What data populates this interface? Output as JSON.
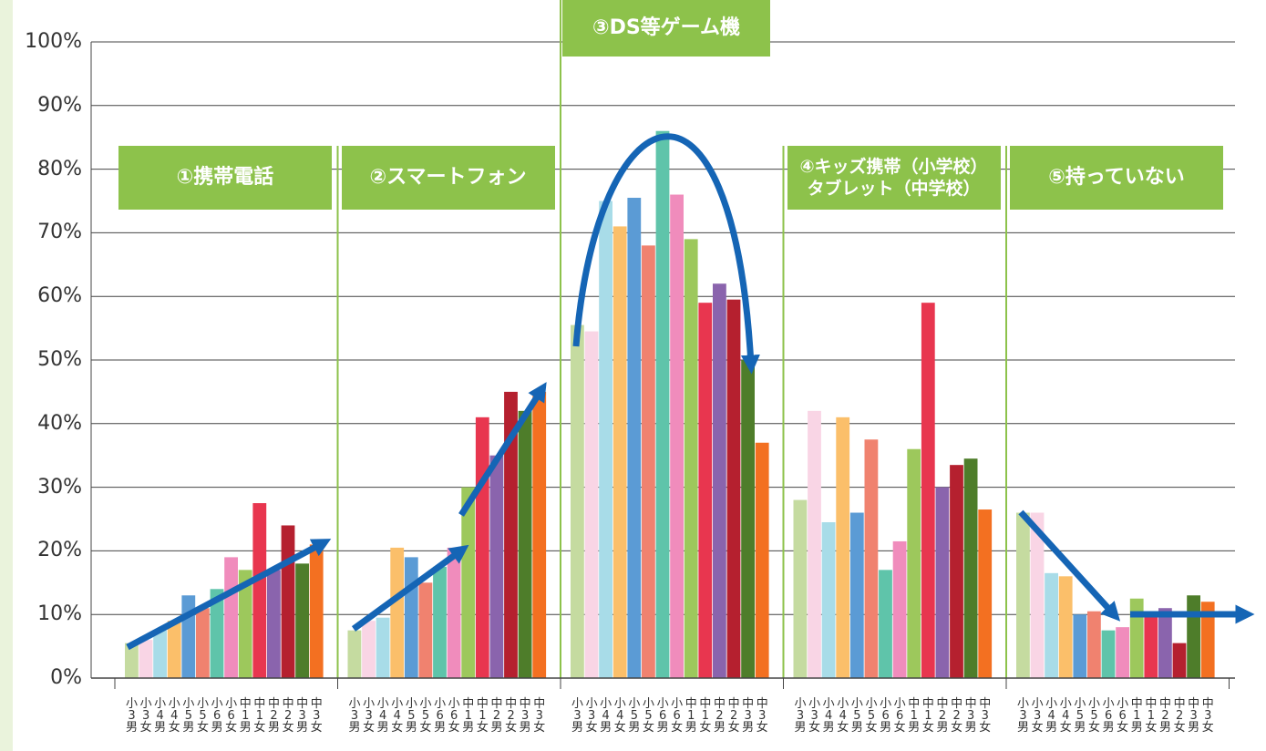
{
  "chart_data": {
    "type": "bar",
    "categories": [
      "①携帯電話",
      "②スマートフォン",
      "③DS等ゲーム機",
      "④キッズ携帯（小学校）\nタブレット（中学校）",
      "⑤持っていない"
    ],
    "series": [
      {
        "name": "小3男",
        "color": "#c5dba0",
        "values": [
          5.5,
          7.5,
          55.5,
          28,
          26
        ]
      },
      {
        "name": "小3女",
        "color": "#f9d5e5",
        "values": [
          6,
          9,
          54.5,
          42,
          26
        ]
      },
      {
        "name": "小4男",
        "color": "#a8dce8",
        "values": [
          7.5,
          9.5,
          75,
          24.5,
          16.5
        ]
      },
      {
        "name": "小4女",
        "color": "#fbbf6a",
        "values": [
          9,
          20.5,
          71,
          41,
          16
        ]
      },
      {
        "name": "小5男",
        "color": "#5b9bd5",
        "values": [
          13,
          19,
          75.5,
          26,
          10
        ]
      },
      {
        "name": "小5女",
        "color": "#f0826f",
        "values": [
          11,
          15,
          68,
          37.5,
          10.5
        ]
      },
      {
        "name": "小6男",
        "color": "#5fc4aa",
        "values": [
          14,
          17.5,
          86,
          17,
          7.5
        ]
      },
      {
        "name": "小6女",
        "color": "#f08cbc",
        "values": [
          19,
          20.5,
          76,
          21.5,
          8
        ]
      },
      {
        "name": "中1男",
        "color": "#9dc85c",
        "values": [
          17,
          30,
          69,
          36,
          12.5
        ]
      },
      {
        "name": "中1女",
        "color": "#e8364f",
        "values": [
          27.5,
          41,
          59,
          59,
          10
        ]
      },
      {
        "name": "中2男",
        "color": "#8a64ad",
        "values": [
          17,
          35,
          62,
          30,
          11
        ]
      },
      {
        "name": "中2女",
        "color": "#b5202f",
        "values": [
          24,
          45,
          59.5,
          33.5,
          5.5
        ]
      },
      {
        "name": "中3男",
        "color": "#4e7d2a",
        "values": [
          18,
          42,
          50,
          34.5,
          13
        ]
      },
      {
        "name": "中3女",
        "color": "#f37021",
        "values": [
          21,
          45,
          37,
          26.5,
          12
        ]
      }
    ],
    "ylim": [
      0,
      100
    ],
    "yticks": [
      {
        "value": 0,
        "label": "0%"
      },
      {
        "value": 10,
        "label": "10%"
      },
      {
        "value": 20,
        "label": "20%"
      },
      {
        "value": 30,
        "label": "30%"
      },
      {
        "value": 40,
        "label": "40%"
      },
      {
        "value": 50,
        "label": "50%"
      },
      {
        "value": 60,
        "label": "60%"
      },
      {
        "value": 70,
        "label": "70%"
      },
      {
        "value": 80,
        "label": "80%"
      },
      {
        "value": 90,
        "label": "90%"
      },
      {
        "value": 100,
        "label": "100%"
      }
    ],
    "grid": true
  }
}
